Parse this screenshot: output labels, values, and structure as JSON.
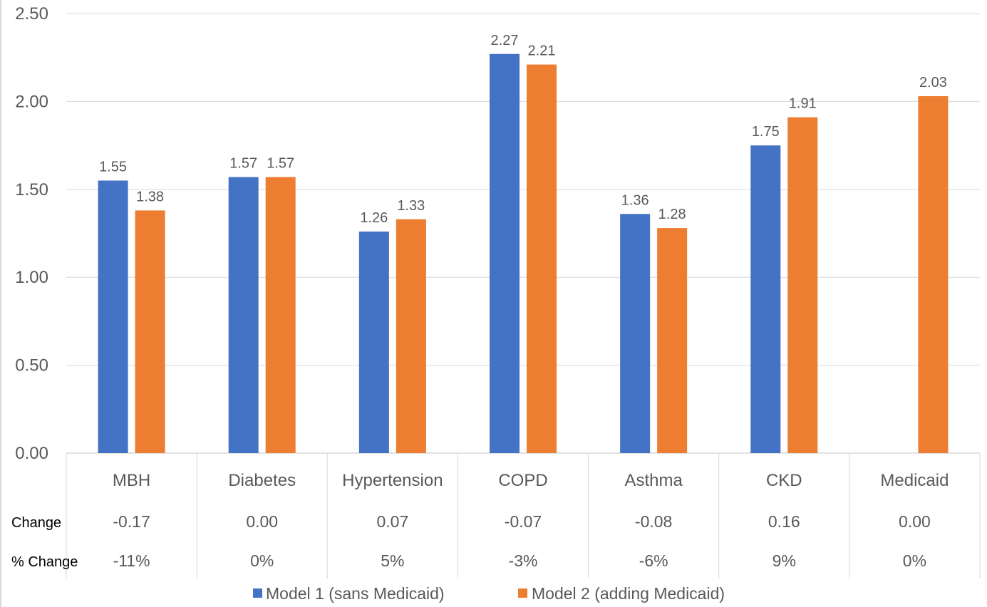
{
  "chart_data": {
    "type": "bar",
    "categories": [
      "MBH",
      "Diabetes",
      "Hypertension",
      "COPD",
      "Asthma",
      "CKD",
      "Medicaid"
    ],
    "series": [
      {
        "name": "Model 1 (sans Medicaid)",
        "color": "#4472c4",
        "values": [
          1.55,
          1.57,
          1.26,
          2.27,
          1.36,
          1.75,
          null
        ],
        "labels": [
          "1.55",
          "1.57",
          "1.26",
          "2.27",
          "1.36",
          "1.75",
          ""
        ]
      },
      {
        "name": "Model 2 (adding Medicaid)",
        "color": "#ed7d31",
        "values": [
          1.38,
          1.57,
          1.33,
          2.21,
          1.28,
          1.91,
          2.03
        ],
        "labels": [
          "1.38",
          "1.57",
          "1.33",
          "2.21",
          "1.28",
          "1.91",
          "2.03"
        ]
      }
    ],
    "ylim": [
      0,
      2.5
    ],
    "yticks": [
      "0.00",
      "0.50",
      "1.00",
      "1.50",
      "2.00",
      "2.50"
    ],
    "ytick_values": [
      0,
      0.5,
      1.0,
      1.5,
      2.0,
      2.5
    ],
    "grid": true,
    "legend_position": "bottom",
    "table_rows": [
      {
        "title": "Change",
        "values": [
          "-0.17",
          "0.00",
          "0.07",
          "-0.07",
          "-0.08",
          "0.16",
          "0.00"
        ]
      },
      {
        "title": "% Change",
        "values": [
          "-11%",
          "0%",
          "5%",
          "-3%",
          "-6%",
          "9%",
          "0%"
        ]
      }
    ],
    "grid_color": "#d9d9d9",
    "axis_color": "#d9d9d9"
  }
}
